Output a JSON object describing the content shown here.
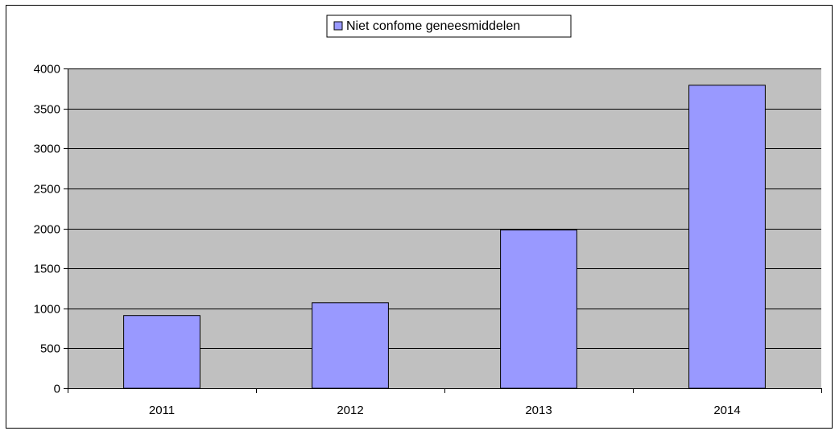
{
  "chart_data": {
    "type": "bar",
    "categories": [
      "2011",
      "2012",
      "2013",
      "2014"
    ],
    "series": [
      {
        "name": "Niet confome geneesmiddelen",
        "values": [
          910,
          1070,
          1980,
          3790
        ]
      }
    ],
    "ylim": [
      0,
      4000
    ],
    "yticks": [
      0,
      500,
      1000,
      1500,
      2000,
      2500,
      3000,
      3500,
      4000
    ],
    "grid": true,
    "legend": "top-center",
    "colors": {
      "bar_fill": "#9999ff",
      "plot_background": "#c0c0c0",
      "gridline": "#000000"
    }
  }
}
